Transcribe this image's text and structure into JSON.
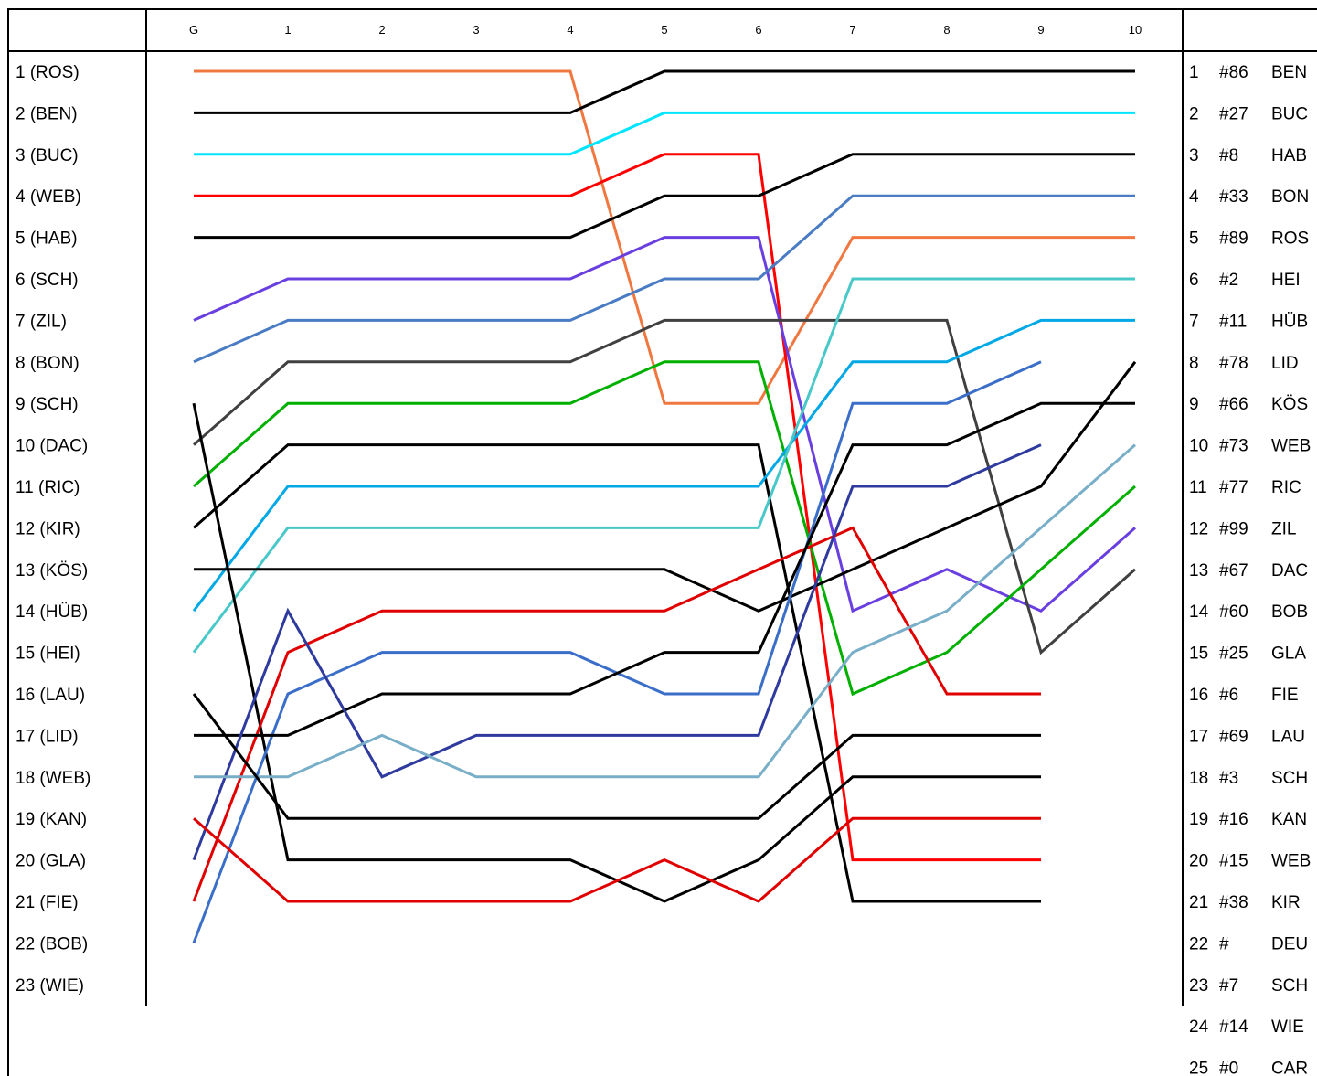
{
  "chart_data": {
    "type": "line",
    "x": [
      "G",
      "1",
      "2",
      "3",
      "4",
      "5",
      "6",
      "7",
      "8",
      "9",
      "10"
    ],
    "start_labels": [
      "1 (ROS)",
      "2 (BEN)",
      "3 (BUC)",
      "4 (WEB)",
      "5 (HAB)",
      "6 (SCH)",
      "7 (ZIL)",
      "8 (BON)",
      "9 (SCH)",
      "10 (DAC)",
      "11 (RIC)",
      "12 (KIR)",
      "13 (KÖS)",
      "14 (HÜB)",
      "15 (HEI)",
      "16 (LAU)",
      "17 (LID)",
      "18 (WEB)",
      "19 (KAN)",
      "20 (GLA)",
      "21 (FIE)",
      "22 (BOB)",
      "23 (WIE)"
    ],
    "final_standings": [
      {
        "pos": "1",
        "num": "#86",
        "code": "BEN"
      },
      {
        "pos": "2",
        "num": "#27",
        "code": "BUC"
      },
      {
        "pos": "3",
        "num": "#8",
        "code": "HAB"
      },
      {
        "pos": "4",
        "num": "#33",
        "code": "BON"
      },
      {
        "pos": "5",
        "num": "#89",
        "code": "ROS"
      },
      {
        "pos": "6",
        "num": "#2",
        "code": "HEI"
      },
      {
        "pos": "7",
        "num": "#11",
        "code": "HÜB"
      },
      {
        "pos": "8",
        "num": "#78",
        "code": "LID"
      },
      {
        "pos": "9",
        "num": "#66",
        "code": "KÖS"
      },
      {
        "pos": "10",
        "num": "#73",
        "code": "WEB"
      },
      {
        "pos": "11",
        "num": "#77",
        "code": "RIC"
      },
      {
        "pos": "12",
        "num": "#99",
        "code": "ZIL"
      },
      {
        "pos": "13",
        "num": "#67",
        "code": "DAC"
      },
      {
        "pos": "14",
        "num": "#60",
        "code": "BOB"
      },
      {
        "pos": "15",
        "num": "#25",
        "code": "GLA"
      },
      {
        "pos": "16",
        "num": "#6",
        "code": "FIE"
      },
      {
        "pos": "17",
        "num": "#69",
        "code": "LAU"
      },
      {
        "pos": "18",
        "num": "#3",
        "code": "SCH"
      },
      {
        "pos": "19",
        "num": "#16",
        "code": "KAN"
      },
      {
        "pos": "20",
        "num": "#15",
        "code": "WEB"
      },
      {
        "pos": "21",
        "num": "#38",
        "code": "KIR"
      },
      {
        "pos": "22",
        "num": "#",
        "code": "DEU"
      },
      {
        "pos": "23",
        "num": "#7",
        "code": "SCH"
      },
      {
        "pos": "24",
        "num": "#14",
        "code": "WIE"
      },
      {
        "pos": "25",
        "num": "#0",
        "code": "CAR"
      }
    ],
    "y_range": [
      1,
      25
    ],
    "y_inverted": true,
    "grid": false,
    "series": [
      {
        "color": "#f07840",
        "values": [
          1,
          1,
          1,
          1,
          1,
          9,
          9,
          5,
          5,
          5,
          5
        ]
      },
      {
        "color": "#000000",
        "values": [
          2,
          2,
          2,
          2,
          2,
          1,
          1,
          1,
          1,
          1,
          1
        ]
      },
      {
        "color": "#00e5ff",
        "values": [
          3,
          3,
          3,
          3,
          3,
          2,
          2,
          2,
          2,
          2,
          2
        ]
      },
      {
        "color": "#ff0000",
        "values": [
          4,
          4,
          4,
          4,
          4,
          3,
          3,
          20,
          20,
          20,
          null
        ]
      },
      {
        "color": "#000000",
        "values": [
          5,
          5,
          5,
          5,
          5,
          4,
          4,
          3,
          3,
          3,
          3
        ]
      },
      {
        "color": "#6a3fe0",
        "values": [
          7,
          6,
          6,
          6,
          6,
          5,
          5,
          14,
          13,
          14,
          12
        ]
      },
      {
        "color": "#4a7cc4",
        "values": [
          8,
          7,
          7,
          7,
          7,
          6,
          6,
          4,
          4,
          4,
          4
        ]
      },
      {
        "color": "#404040",
        "values": [
          10,
          8,
          8,
          8,
          8,
          7,
          7,
          7,
          7,
          15,
          13
        ]
      },
      {
        "color": "#00b000",
        "values": [
          11,
          9,
          9,
          9,
          9,
          8,
          8,
          16,
          15,
          13,
          11
        ]
      },
      {
        "color": "#000000",
        "values": [
          12,
          10,
          10,
          10,
          10,
          10,
          10,
          21,
          21,
          21,
          null
        ]
      },
      {
        "color": "#00a8e6",
        "values": [
          14,
          11,
          11,
          11,
          11,
          11,
          11,
          8,
          8,
          7,
          7
        ]
      },
      {
        "color": "#48c8c8",
        "values": [
          15,
          12,
          12,
          12,
          12,
          12,
          12,
          6,
          6,
          6,
          6
        ]
      },
      {
        "color": "#000000",
        "values": [
          13,
          13,
          13,
          13,
          13,
          13,
          14,
          13,
          12,
          11,
          8
        ]
      },
      {
        "color": "#000000",
        "values": [
          9,
          20,
          20,
          20,
          20,
          21,
          20,
          18,
          18,
          18,
          null
        ]
      },
      {
        "color": "#e00000",
        "values": [
          21,
          15,
          14,
          14,
          14,
          14,
          13,
          12,
          16,
          16,
          null
        ]
      },
      {
        "color": "#3a6ec8",
        "values": [
          22,
          16,
          15,
          15,
          15,
          16,
          16,
          9,
          9,
          8,
          null
        ]
      },
      {
        "color": "#000000",
        "values": [
          17,
          17,
          16,
          16,
          16,
          15,
          15,
          10,
          10,
          9,
          9
        ]
      },
      {
        "color": "#2e3a9e",
        "values": [
          20,
          14,
          18,
          17,
          17,
          17,
          17,
          11,
          11,
          10,
          null
        ]
      },
      {
        "color": "#78aec8",
        "values": [
          18,
          18,
          17,
          18,
          18,
          18,
          18,
          15,
          14,
          12,
          10
        ]
      },
      {
        "color": "#000000",
        "values": [
          16,
          19,
          19,
          19,
          19,
          19,
          19,
          17,
          17,
          17,
          null
        ]
      },
      {
        "color": "#e00000",
        "values": [
          19,
          21,
          21,
          21,
          21,
          20,
          21,
          19,
          19,
          19,
          null
        ]
      }
    ]
  }
}
